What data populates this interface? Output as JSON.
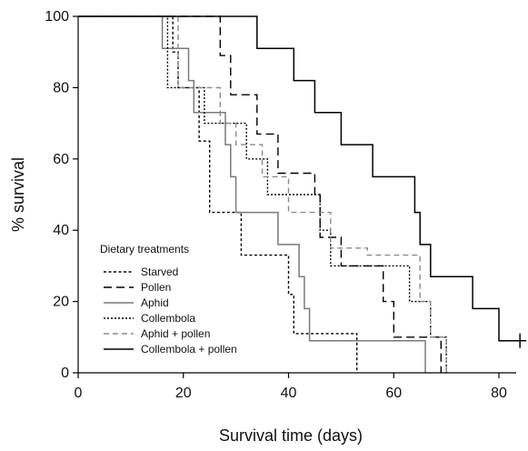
{
  "chart_data": {
    "type": "line",
    "xlabel": "Survival time (days)",
    "ylabel": "% survival",
    "xlim": [
      0,
      85
    ],
    "ylim": [
      0,
      100
    ],
    "xticks": [
      0,
      20,
      40,
      60,
      80
    ],
    "yticks": [
      0,
      20,
      40,
      60,
      80,
      100
    ],
    "grid": false,
    "legend_title": "Dietary treatments",
    "legend_position": "bottom-left",
    "series": [
      {
        "name": "Starved",
        "dash": "3,2.5",
        "color": "#000000",
        "width": 1.4,
        "points": [
          [
            0,
            100
          ],
          [
            18,
            100
          ],
          [
            18,
            90
          ],
          [
            19,
            90
          ],
          [
            19,
            80
          ],
          [
            23,
            80
          ],
          [
            23,
            65
          ],
          [
            25,
            65
          ],
          [
            25,
            45
          ],
          [
            31,
            45
          ],
          [
            31,
            33
          ],
          [
            40,
            33
          ],
          [
            40,
            22
          ],
          [
            41,
            22
          ],
          [
            41,
            11
          ],
          [
            53,
            11
          ],
          [
            53,
            0
          ]
        ]
      },
      {
        "name": "Pollen",
        "dash": "9,5",
        "color": "#000000",
        "width": 1.4,
        "points": [
          [
            0,
            100
          ],
          [
            27,
            100
          ],
          [
            27,
            89
          ],
          [
            29,
            89
          ],
          [
            29,
            78
          ],
          [
            34,
            78
          ],
          [
            34,
            67
          ],
          [
            38,
            67
          ],
          [
            38,
            56
          ],
          [
            45,
            56
          ],
          [
            45,
            50
          ],
          [
            46,
            50
          ],
          [
            46,
            38
          ],
          [
            50,
            38
          ],
          [
            50,
            30
          ],
          [
            58,
            30
          ],
          [
            58,
            20
          ],
          [
            60,
            20
          ],
          [
            60,
            10
          ],
          [
            69,
            10
          ],
          [
            69,
            0
          ]
        ]
      },
      {
        "name": "Aphid",
        "dash": "",
        "color": "#7a7a7a",
        "width": 1.5,
        "points": [
          [
            0,
            100
          ],
          [
            16,
            100
          ],
          [
            16,
            91
          ],
          [
            21,
            91
          ],
          [
            21,
            82
          ],
          [
            22,
            82
          ],
          [
            22,
            73
          ],
          [
            28,
            73
          ],
          [
            28,
            64
          ],
          [
            29,
            64
          ],
          [
            29,
            55
          ],
          [
            30,
            55
          ],
          [
            30,
            45
          ],
          [
            38,
            45
          ],
          [
            38,
            36
          ],
          [
            42,
            36
          ],
          [
            42,
            27
          ],
          [
            43,
            27
          ],
          [
            43,
            18
          ],
          [
            44,
            18
          ],
          [
            44,
            9
          ],
          [
            66,
            9
          ],
          [
            66,
            0
          ]
        ]
      },
      {
        "name": "Collembola",
        "dash": "2,2",
        "color": "#000000",
        "width": 1.4,
        "points": [
          [
            0,
            100
          ],
          [
            17,
            100
          ],
          [
            17,
            80
          ],
          [
            24,
            80
          ],
          [
            24,
            70
          ],
          [
            32,
            70
          ],
          [
            32,
            60
          ],
          [
            36,
            60
          ],
          [
            36,
            50
          ],
          [
            46,
            50
          ],
          [
            46,
            40
          ],
          [
            48,
            40
          ],
          [
            48,
            30
          ],
          [
            63,
            30
          ],
          [
            63,
            20
          ],
          [
            67,
            20
          ],
          [
            67,
            10
          ],
          [
            70,
            10
          ],
          [
            70,
            0
          ]
        ]
      },
      {
        "name": "Aphid + pollen",
        "dash": "6,4",
        "color": "#8a8a8a",
        "width": 1.4,
        "points": [
          [
            0,
            100
          ],
          [
            19,
            100
          ],
          [
            19,
            80
          ],
          [
            27,
            80
          ],
          [
            27,
            70
          ],
          [
            30,
            70
          ],
          [
            30,
            64
          ],
          [
            35,
            64
          ],
          [
            35,
            55
          ],
          [
            40,
            55
          ],
          [
            40,
            45
          ],
          [
            48,
            45
          ],
          [
            48,
            35
          ],
          [
            55,
            35
          ],
          [
            55,
            33
          ],
          [
            65,
            33
          ],
          [
            65,
            20
          ],
          [
            67,
            20
          ],
          [
            67,
            10
          ],
          [
            70,
            10
          ],
          [
            70,
            0
          ]
        ]
      },
      {
        "name": "Collembola + pollen",
        "dash": "",
        "color": "#000000",
        "width": 1.5,
        "points": [
          [
            0,
            100
          ],
          [
            34,
            100
          ],
          [
            34,
            91
          ],
          [
            41,
            91
          ],
          [
            41,
            82
          ],
          [
            45,
            82
          ],
          [
            45,
            73
          ],
          [
            50,
            73
          ],
          [
            50,
            64
          ],
          [
            56,
            64
          ],
          [
            56,
            55
          ],
          [
            64,
            55
          ],
          [
            64,
            45
          ],
          [
            65,
            45
          ],
          [
            65,
            36
          ],
          [
            67,
            36
          ],
          [
            67,
            27
          ],
          [
            75,
            27
          ],
          [
            75,
            18
          ],
          [
            80,
            18
          ],
          [
            80,
            9
          ],
          [
            84,
            9
          ]
        ]
      }
    ],
    "censored_marks": [
      [
        84,
        9
      ]
    ]
  }
}
